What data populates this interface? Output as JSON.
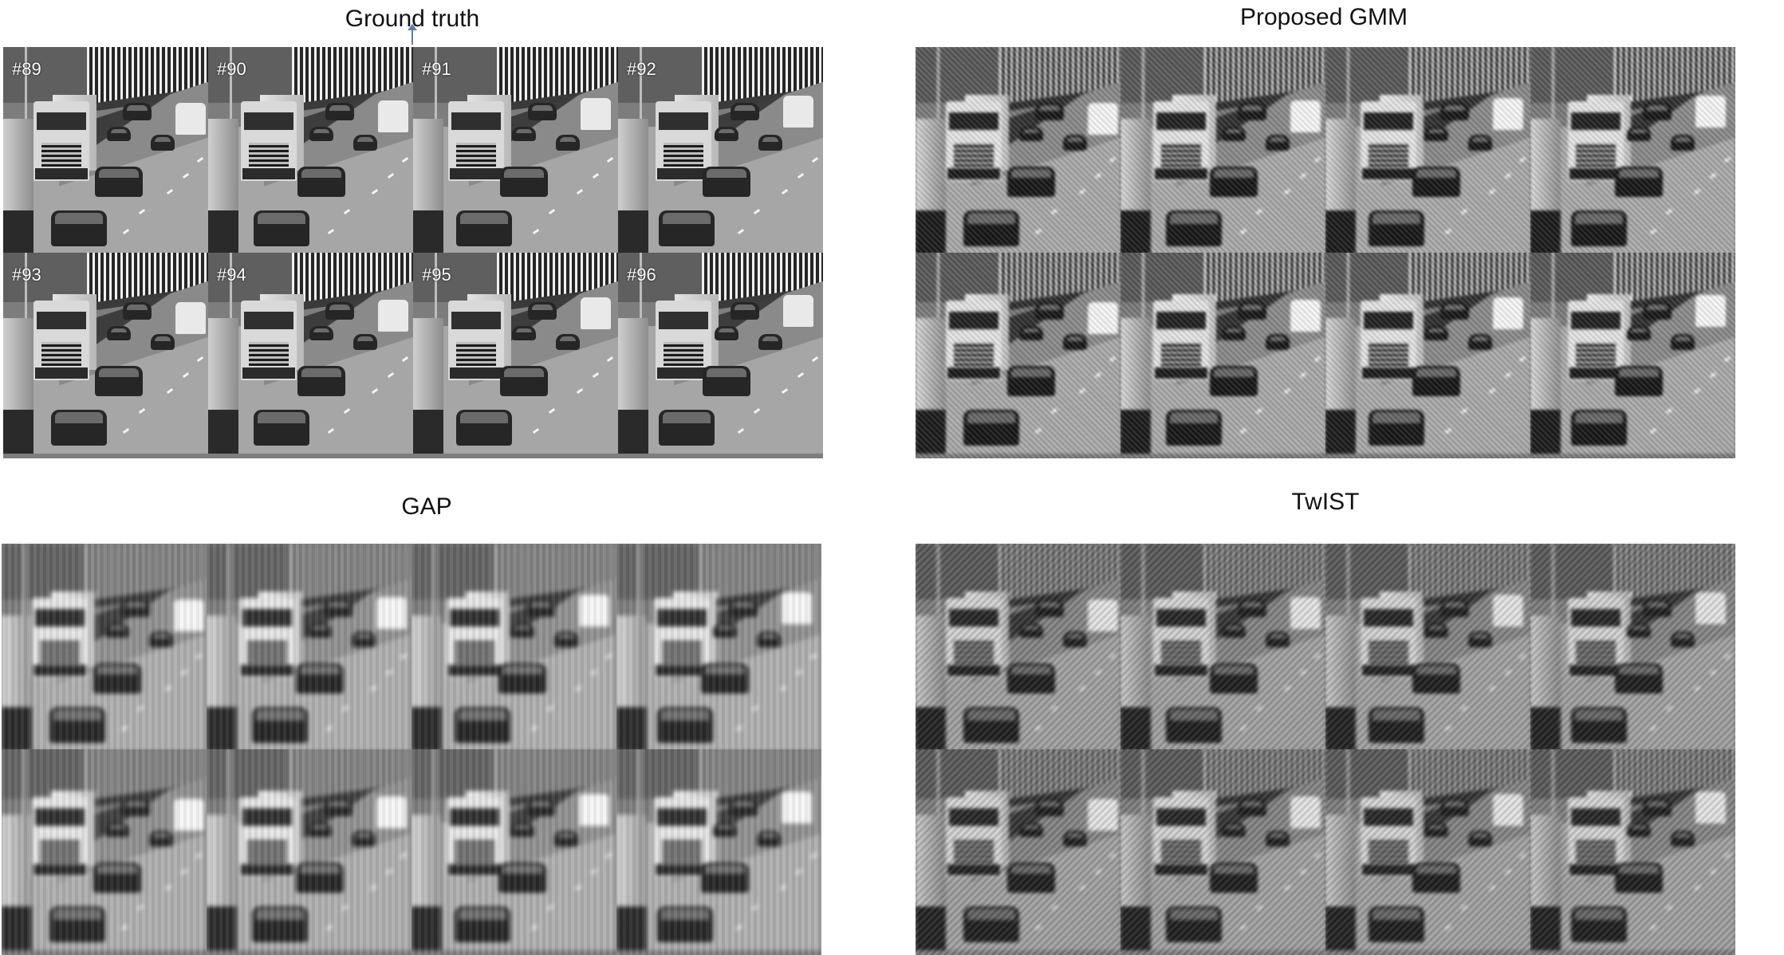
{
  "panels": [
    {
      "id": "ground-truth",
      "title": "Ground truth",
      "variant": "truth",
      "frame_labels": [
        "#89",
        "#90",
        "#91",
        "#92",
        "#93",
        "#94",
        "#95",
        "#96"
      ]
    },
    {
      "id": "proposed-gmm",
      "title": "Proposed GMM",
      "variant": "gmm",
      "frame_labels": []
    },
    {
      "id": "gap",
      "title": "GAP",
      "variant": "gap",
      "frame_labels": []
    },
    {
      "id": "twist",
      "title": "TwIST",
      "variant": "twist",
      "frame_labels": []
    }
  ],
  "scene": {
    "description_icons": [
      "truck",
      "car",
      "van",
      "fence",
      "road"
    ],
    "colors": {
      "background": "#ffffff",
      "road": "#a6a6a6",
      "fence_light": "#f0f0f0",
      "fence_dark": "#262626"
    }
  }
}
